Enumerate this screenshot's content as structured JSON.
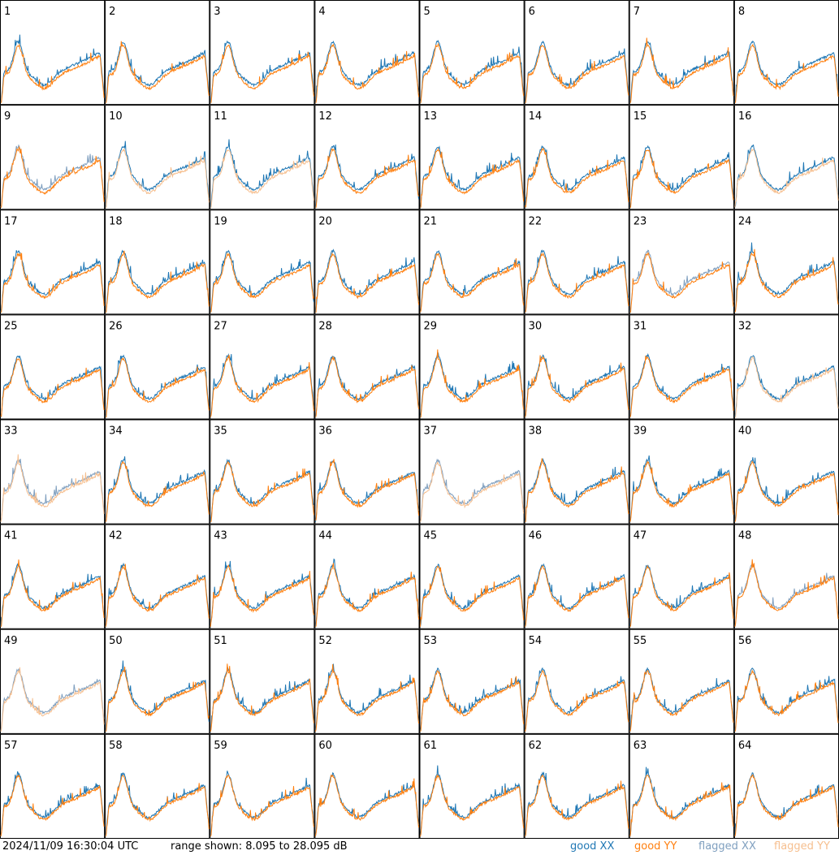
{
  "chart_data": {
    "type": "line",
    "layout": "8x8 small multiples",
    "panels": [
      "1",
      "2",
      "3",
      "4",
      "5",
      "6",
      "7",
      "8",
      "9",
      "10",
      "11",
      "12",
      "13",
      "14",
      "15",
      "16",
      "17",
      "18",
      "19",
      "20",
      "21",
      "22",
      "23",
      "24",
      "25",
      "26",
      "27",
      "28",
      "29",
      "30",
      "31",
      "32",
      "33",
      "34",
      "35",
      "36",
      "37",
      "38",
      "39",
      "40",
      "41",
      "42",
      "43",
      "44",
      "45",
      "46",
      "47",
      "48",
      "49",
      "50",
      "51",
      "52",
      "53",
      "54",
      "55",
      "56",
      "57",
      "58",
      "59",
      "60",
      "61",
      "62",
      "63",
      "64"
    ],
    "xlabel": "",
    "ylabel": "",
    "ylim_db": [
      8.095,
      28.095
    ],
    "series": [
      {
        "name": "good XX",
        "color": "#1f77b4"
      },
      {
        "name": "good YY",
        "color": "#ff7f0e"
      },
      {
        "name": "flagged XX",
        "color": "#7f9fbf"
      },
      {
        "name": "flagged YY",
        "color": "#f6bf8f"
      }
    ],
    "panel_style": {
      "XX": [
        "good",
        "good",
        "good",
        "good",
        "good",
        "good",
        "good",
        "good",
        "flagged",
        "good",
        "good",
        "good",
        "good",
        "good",
        "good",
        "good",
        "good",
        "good",
        "good",
        "good",
        "good",
        "good",
        "flagged",
        "good",
        "good",
        "good",
        "good",
        "good",
        "good",
        "good",
        "good",
        "good",
        "flagged",
        "good",
        "good",
        "good",
        "flagged",
        "good",
        "good",
        "good",
        "good",
        "good",
        "good",
        "good",
        "good",
        "good",
        "good",
        "flagged",
        "flagged",
        "good",
        "good",
        "good",
        "good",
        "good",
        "good",
        "good",
        "good",
        "good",
        "good",
        "good",
        "good",
        "good",
        "good",
        "good"
      ],
      "YY": [
        "good",
        "good",
        "good",
        "good",
        "good",
        "good",
        "good",
        "good",
        "good",
        "flagged",
        "flagged",
        "good",
        "good",
        "good",
        "good",
        "flagged",
        "good",
        "good",
        "good",
        "good",
        "good",
        "good",
        "good",
        "good",
        "good",
        "good",
        "good",
        "good",
        "good",
        "good",
        "good",
        "flagged",
        "flagged",
        "good",
        "good",
        "good",
        "flagged",
        "good",
        "good",
        "good",
        "good",
        "good",
        "good",
        "good",
        "good",
        "good",
        "good",
        "good",
        "flagged",
        "good",
        "good",
        "good",
        "good",
        "good",
        "good",
        "good",
        "good",
        "good",
        "good",
        "good",
        "good",
        "good",
        "good",
        "good"
      ]
    }
  },
  "footer": {
    "timestamp": "2024/11/09 16:30:04 UTC",
    "range": "range shown: 8.095 to 28.095 dB",
    "legend_good_xx": "good XX",
    "legend_good_yy": "good YY",
    "legend_flagged_xx": "flagged XX",
    "legend_flagged_yy": "flagged YY"
  }
}
